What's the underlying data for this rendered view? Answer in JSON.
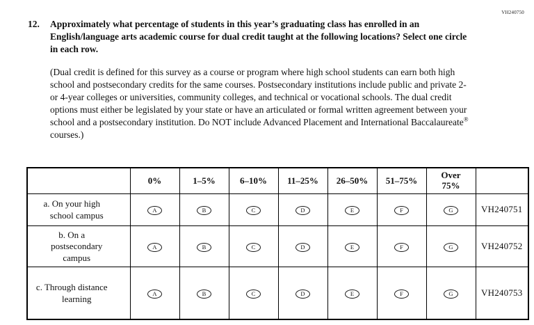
{
  "page": {
    "form_code_top": "VH240750"
  },
  "question": {
    "number": "12.",
    "stem_part1": "Approximately what percentage of students in this year’s graduating class has enrolled in an English/language arts academic course for dual credit taught at the following locations? Select ",
    "stem_bold": "one",
    "stem_part2": " circle in each row.",
    "definition_part1": "(Dual credit is defined for this survey as a course or program where high school students can earn both high school and postsecondary credits for the same courses. Postsecondary institutions include public and private 2- or 4-year colleges or universities, community colleges, and technical or vocational schools. The dual credit options must either be legislated by your state or have an articulated or formal written agreement between your school and a postsecondary institution. Do NOT include Advanced Placement and International Baccalaureate",
    "definition_sup": "®",
    "definition_part2": " courses.)"
  },
  "table": {
    "headers": [
      "0%",
      "1–5%",
      "6–10%",
      "11–25%",
      "26–50%",
      "51–75%",
      "Over\n75%"
    ],
    "option_letters": [
      "A",
      "B",
      "C",
      "D",
      "E",
      "F",
      "G"
    ],
    "rows": [
      {
        "label": "a. On your high school campus",
        "code": "VH240751"
      },
      {
        "label": "b. On a postsecondary campus",
        "code": "VH240752"
      },
      {
        "label": "c. Through distance learning",
        "code": "VH240753"
      }
    ]
  }
}
